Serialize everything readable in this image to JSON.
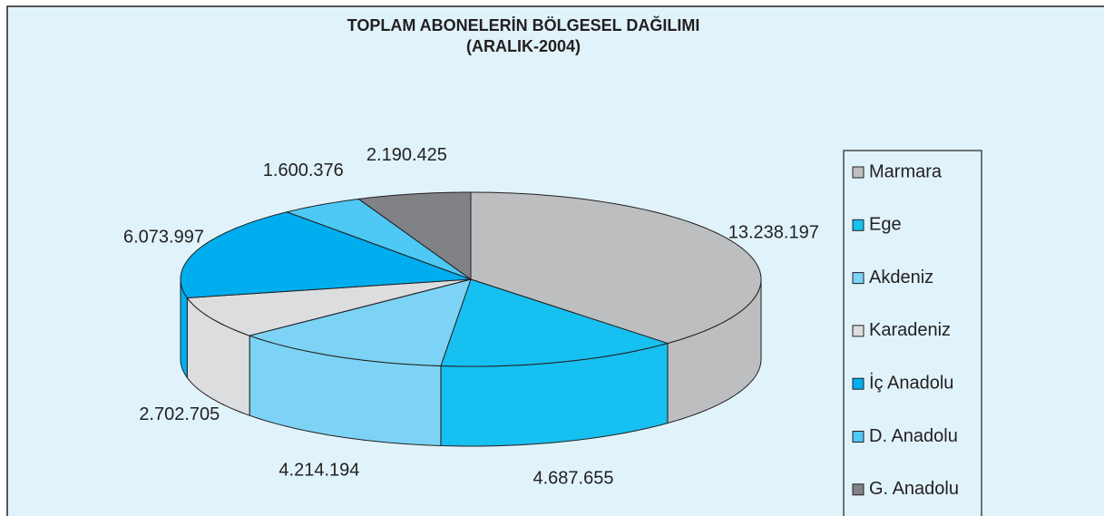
{
  "chart_data": {
    "type": "pie",
    "title": "TOPLAM ABONELERİN BÖLGESEL DAĞILIMI",
    "subtitle": "(ARALIK-2004)",
    "categories": [
      "Marmara",
      "Ege",
      "Akdeniz",
      "Karadeniz",
      "İç Anadolu",
      "D. Anadolu",
      "G. Anadolu"
    ],
    "values": [
      13238197,
      4687655,
      4214194,
      2702705,
      6073997,
      1600376,
      2190425
    ],
    "value_labels": [
      "13.238.197",
      "4.687.655",
      "4.214.194",
      "2.702.705",
      "6.073.997",
      "1.600.376",
      "2.190.425"
    ],
    "colors": [
      "#bcbec0",
      "#16c0f0",
      "#7dd3f5",
      "#dcdddf",
      "#00aeef",
      "#4ec8f4",
      "#808285"
    ],
    "legend": "right"
  }
}
